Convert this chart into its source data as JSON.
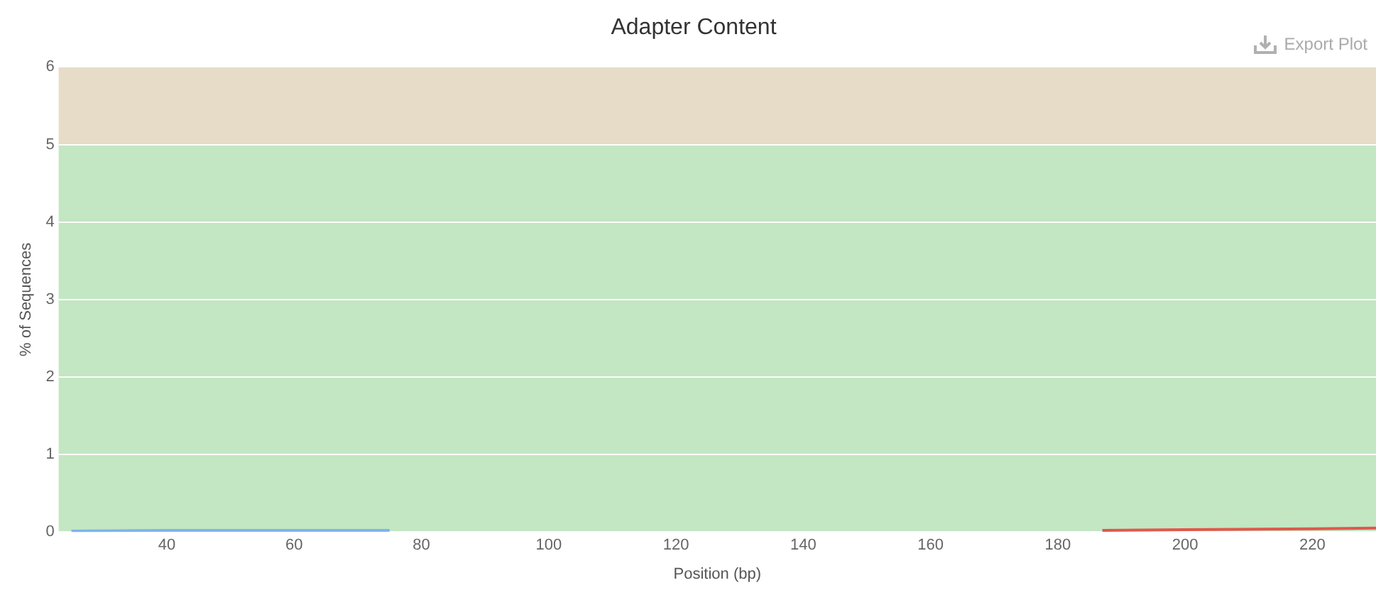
{
  "chart_data": {
    "type": "line",
    "title": "Adapter Content",
    "xlabel": "Position (bp)",
    "ylabel": "% of Sequences",
    "series": [
      {
        "color": "#7cb5ec",
        "x": [
          25,
          40,
          60,
          75
        ],
        "values": [
          0.01,
          0.02,
          0.02,
          0.02
        ]
      },
      {
        "color": "#e2574c",
        "x": [
          187,
          200,
          220,
          230
        ],
        "values": [
          0.02,
          0.03,
          0.04,
          0.05
        ]
      }
    ],
    "xlim": [
      23,
      230
    ],
    "xticks": [
      40,
      60,
      80,
      100,
      120,
      140,
      160,
      180,
      200,
      220
    ],
    "ylim": [
      0,
      6
    ],
    "yticks": [
      0,
      1,
      2,
      3,
      4,
      5,
      6
    ],
    "bands": [
      {
        "axis": "y",
        "from": 0,
        "to": 5,
        "color": "#c3e6c3"
      },
      {
        "axis": "y",
        "from": 5,
        "to": 6,
        "color": "#e6dcc7"
      }
    ],
    "grid": "y",
    "legend": false,
    "marker": "none",
    "line_style": "solid",
    "annotations": [
      "Export Plot"
    ]
  }
}
